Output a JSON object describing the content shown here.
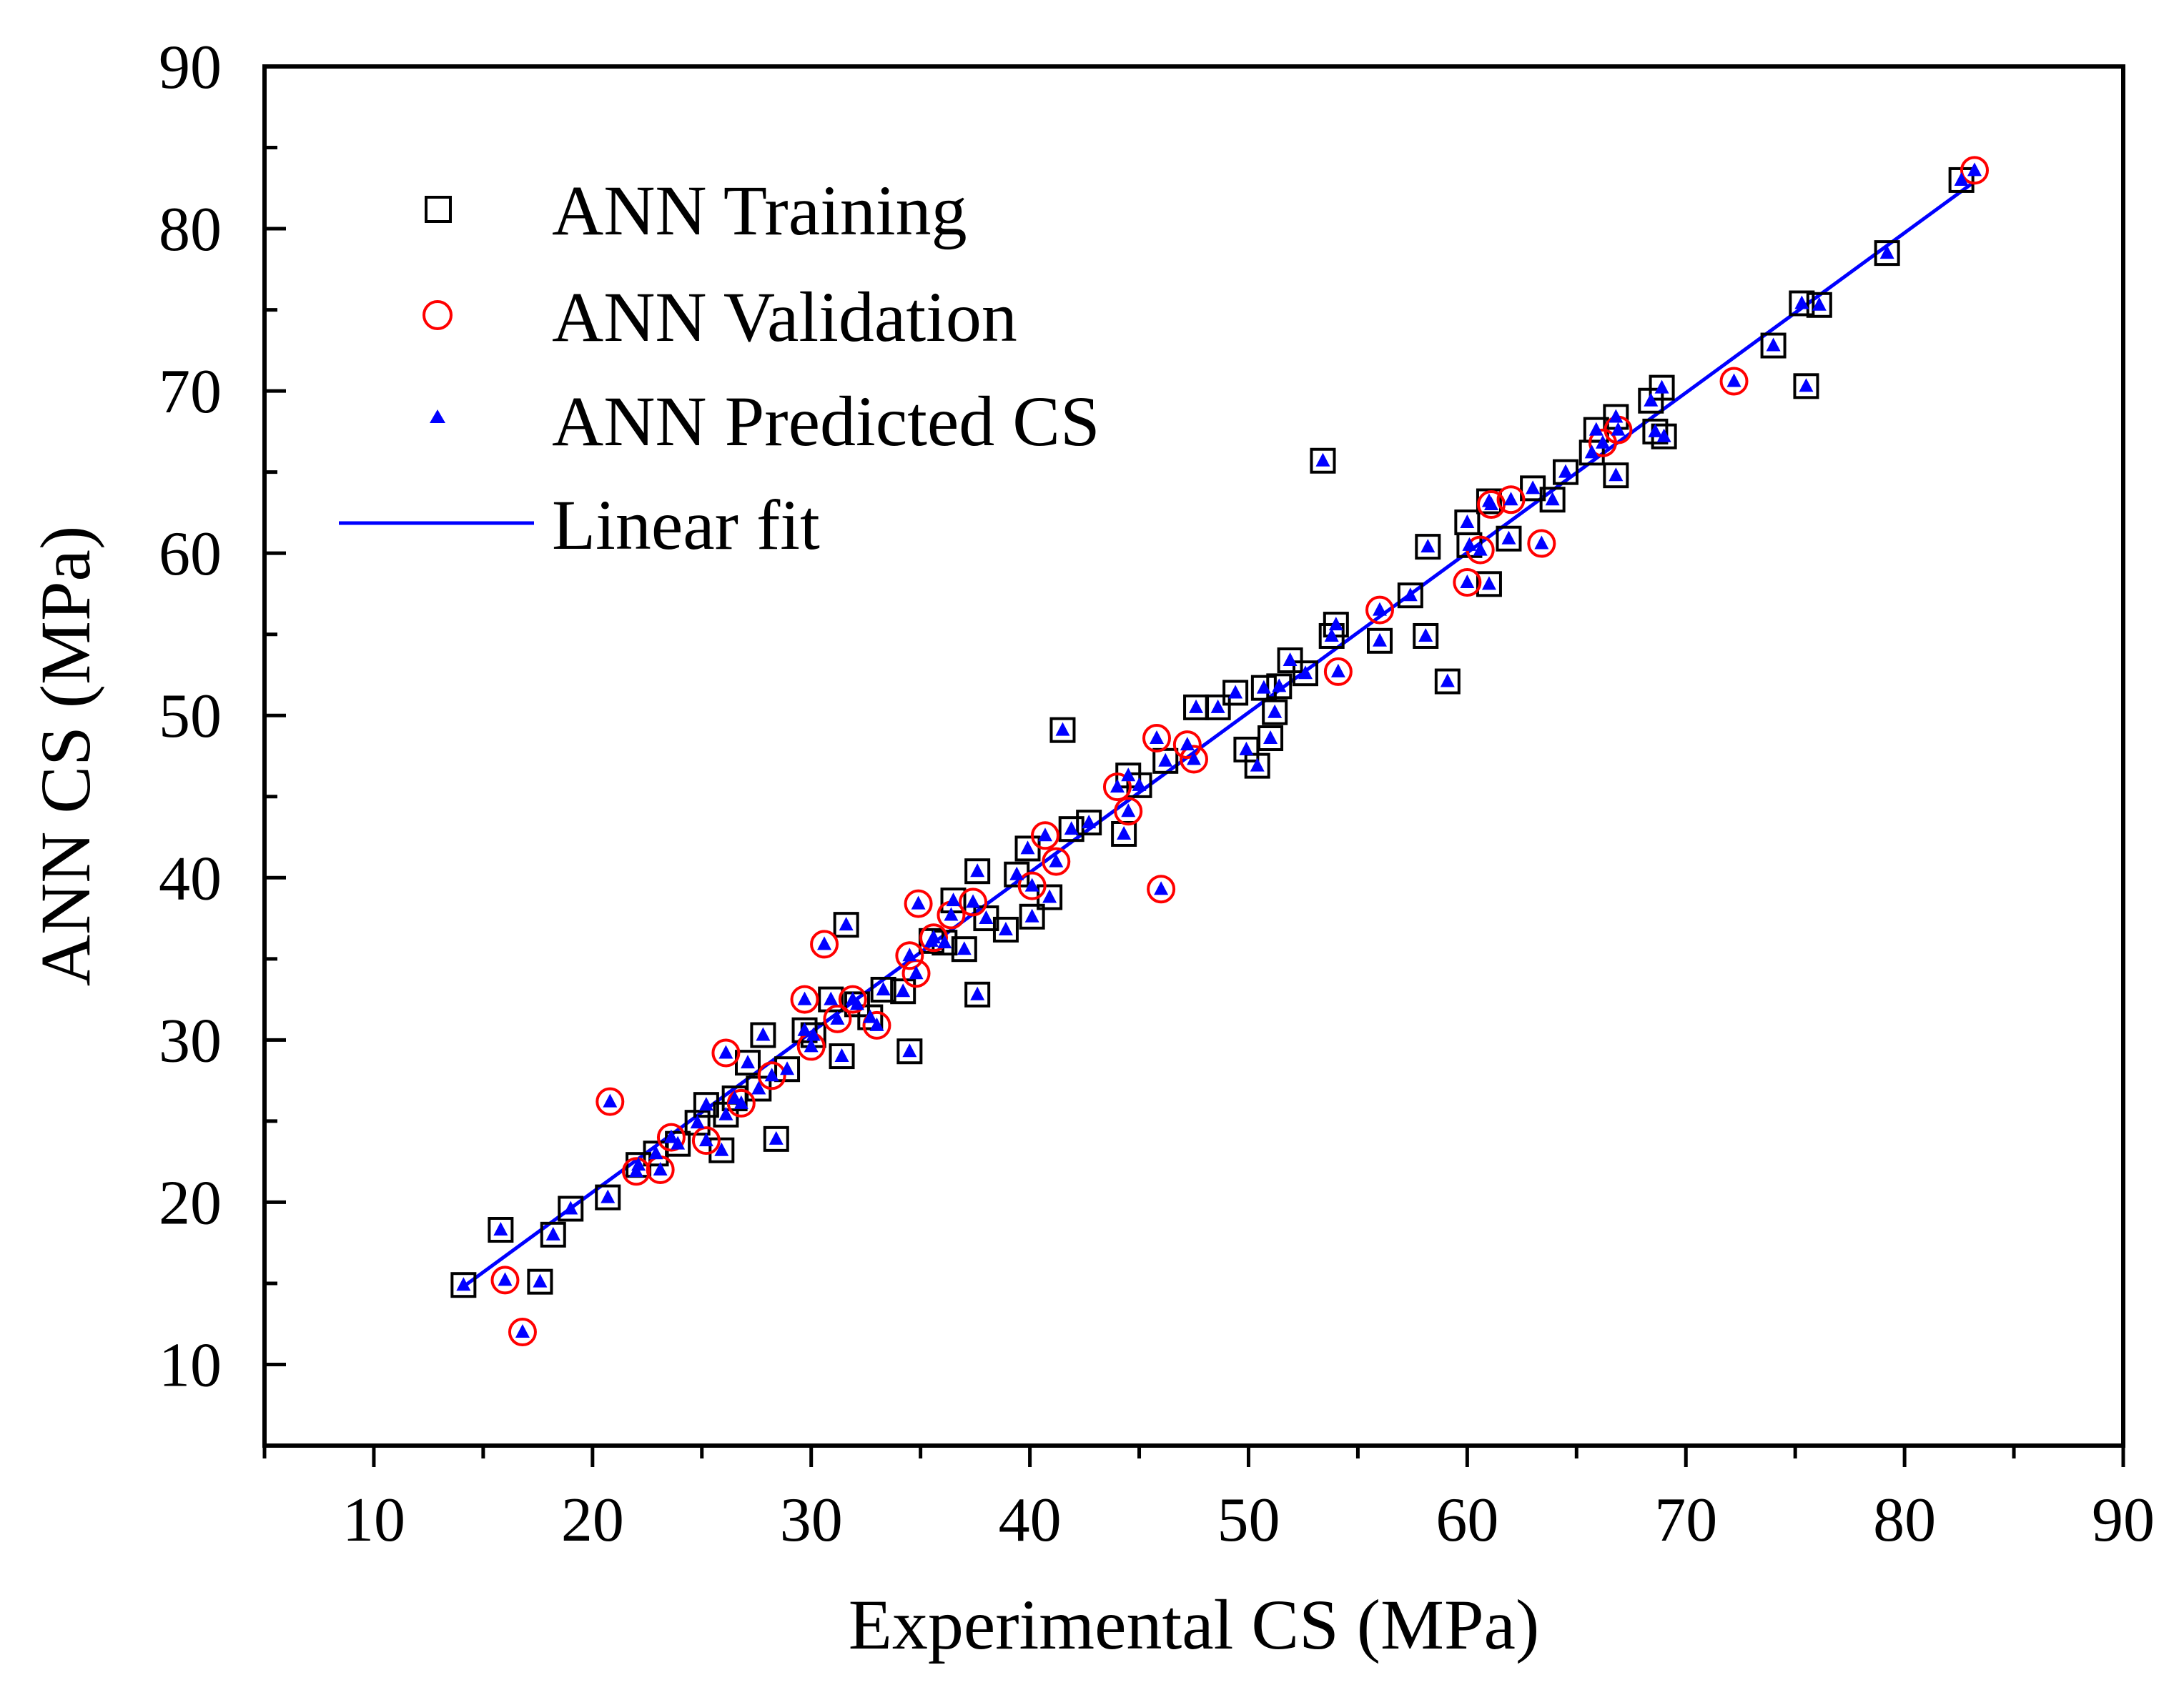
{
  "chart_data": {
    "type": "scatter",
    "xlabel": "Experimental CS (MPa)",
    "ylabel": "ANN CS (MPa)",
    "xlim": [
      5,
      90
    ],
    "ylim": [
      5,
      90
    ],
    "xticks": [
      10,
      20,
      30,
      40,
      50,
      60,
      70,
      80,
      90
    ],
    "yticks": [
      10,
      20,
      30,
      40,
      50,
      60,
      70,
      80,
      90
    ],
    "legend_position": "top-left",
    "colors": {
      "training": "#000000",
      "validation": "#ff0000",
      "predicted": "#0000ff",
      "fit": "#0000ff"
    },
    "series": [
      {
        "name": "ANN Training",
        "marker": "square-open",
        "points": [
          [
            14.1,
            14.9
          ],
          [
            15.8,
            18.3
          ],
          [
            17.6,
            15.1
          ],
          [
            18.2,
            18.0
          ],
          [
            19.0,
            19.6
          ],
          [
            20.7,
            20.3
          ],
          [
            22.1,
            22.3
          ],
          [
            22.9,
            23.0
          ],
          [
            23.9,
            23.6
          ],
          [
            24.8,
            24.9
          ],
          [
            25.2,
            26.0
          ],
          [
            25.9,
            23.2
          ],
          [
            26.1,
            25.4
          ],
          [
            26.5,
            26.4
          ],
          [
            27.1,
            28.6
          ],
          [
            27.6,
            27.0
          ],
          [
            27.8,
            30.3
          ],
          [
            28.4,
            23.9
          ],
          [
            28.9,
            28.2
          ],
          [
            29.7,
            30.6
          ],
          [
            30.1,
            30.3
          ],
          [
            30.9,
            32.5
          ],
          [
            31.4,
            29.0
          ],
          [
            31.6,
            37.1
          ],
          [
            32.1,
            32.2
          ],
          [
            32.7,
            31.4
          ],
          [
            33.3,
            33.1
          ],
          [
            34.2,
            33.0
          ],
          [
            34.5,
            29.3
          ],
          [
            35.5,
            36.1
          ],
          [
            36.1,
            36.0
          ],
          [
            36.5,
            38.6
          ],
          [
            37.0,
            35.6
          ],
          [
            37.6,
            40.4
          ],
          [
            37.6,
            32.8
          ],
          [
            38.0,
            37.5
          ],
          [
            38.9,
            36.8
          ],
          [
            39.4,
            40.2
          ],
          [
            39.9,
            41.8
          ],
          [
            40.1,
            37.6
          ],
          [
            40.9,
            38.8
          ],
          [
            41.5,
            49.1
          ],
          [
            41.9,
            43.0
          ],
          [
            42.7,
            43.4
          ],
          [
            44.3,
            42.7
          ],
          [
            44.5,
            46.3
          ],
          [
            45.0,
            45.7
          ],
          [
            46.2,
            47.2
          ],
          [
            47.6,
            50.5
          ],
          [
            48.6,
            50.5
          ],
          [
            49.4,
            51.4
          ],
          [
            49.9,
            47.9
          ],
          [
            50.4,
            46.9
          ],
          [
            50.7,
            51.7
          ],
          [
            51.0,
            48.6
          ],
          [
            51.2,
            50.2
          ],
          [
            51.4,
            51.8
          ],
          [
            51.9,
            53.4
          ],
          [
            52.6,
            52.6
          ],
          [
            53.4,
            65.7
          ],
          [
            53.8,
            54.9
          ],
          [
            54.0,
            55.6
          ],
          [
            56.0,
            54.6
          ],
          [
            57.4,
            57.4
          ],
          [
            58.1,
            54.9
          ],
          [
            58.2,
            60.4
          ],
          [
            59.1,
            52.1
          ],
          [
            60.0,
            61.9
          ],
          [
            60.1,
            60.5
          ],
          [
            61.0,
            58.1
          ],
          [
            61.0,
            63.2
          ],
          [
            61.9,
            60.9
          ],
          [
            63.0,
            64.0
          ],
          [
            63.9,
            63.3
          ],
          [
            64.5,
            65.0
          ],
          [
            65.7,
            66.2
          ],
          [
            65.9,
            67.6
          ],
          [
            66.8,
            68.4
          ],
          [
            66.8,
            64.8
          ],
          [
            68.4,
            69.4
          ],
          [
            68.6,
            67.5
          ],
          [
            68.9,
            70.2
          ],
          [
            69.0,
            67.2
          ],
          [
            74.0,
            72.8
          ],
          [
            75.3,
            75.4
          ],
          [
            75.5,
            70.3
          ],
          [
            76.1,
            75.3
          ],
          [
            79.2,
            78.5
          ],
          [
            82.6,
            83.0
          ]
        ]
      },
      {
        "name": "ANN Validation",
        "marker": "circle-open",
        "points": [
          [
            16.0,
            15.2
          ],
          [
            16.8,
            12.0
          ],
          [
            20.8,
            26.2
          ],
          [
            22.0,
            21.9
          ],
          [
            23.1,
            22.0
          ],
          [
            23.6,
            24.0
          ],
          [
            25.2,
            23.8
          ],
          [
            26.1,
            29.2
          ],
          [
            26.8,
            26.1
          ],
          [
            28.2,
            27.8
          ],
          [
            29.7,
            32.5
          ],
          [
            30.0,
            29.6
          ],
          [
            30.6,
            35.9
          ],
          [
            31.2,
            31.3
          ],
          [
            31.9,
            32.5
          ],
          [
            33.0,
            30.9
          ],
          [
            34.5,
            35.2
          ],
          [
            34.8,
            34.1
          ],
          [
            34.9,
            38.4
          ],
          [
            35.6,
            36.3
          ],
          [
            36.4,
            37.7
          ],
          [
            37.4,
            38.5
          ],
          [
            40.1,
            39.5
          ],
          [
            40.7,
            42.6
          ],
          [
            41.2,
            41.0
          ],
          [
            44.0,
            45.6
          ],
          [
            44.5,
            44.1
          ],
          [
            45.8,
            48.6
          ],
          [
            46.0,
            39.3
          ],
          [
            47.2,
            48.2
          ],
          [
            47.5,
            47.3
          ],
          [
            54.1,
            52.7
          ],
          [
            56.0,
            56.5
          ],
          [
            60.0,
            58.2
          ],
          [
            60.6,
            60.2
          ],
          [
            61.1,
            63.0
          ],
          [
            62.0,
            63.3
          ],
          [
            63.4,
            60.6
          ],
          [
            66.2,
            66.8
          ],
          [
            66.9,
            67.6
          ],
          [
            72.2,
            70.6
          ],
          [
            83.2,
            83.6
          ]
        ]
      },
      {
        "name": "ANN Predicted CS",
        "marker": "triangle-filled",
        "points": [
          [
            14.1,
            14.9
          ],
          [
            15.8,
            18.3
          ],
          [
            16.0,
            15.2
          ],
          [
            16.8,
            12.0
          ],
          [
            17.6,
            15.1
          ],
          [
            18.2,
            18.0
          ],
          [
            19.0,
            19.6
          ],
          [
            20.7,
            20.3
          ],
          [
            20.8,
            26.2
          ],
          [
            22.0,
            21.9
          ],
          [
            22.1,
            22.3
          ],
          [
            22.9,
            23.0
          ],
          [
            23.1,
            22.0
          ],
          [
            23.6,
            24.0
          ],
          [
            23.9,
            23.6
          ],
          [
            24.8,
            24.9
          ],
          [
            25.2,
            26.0
          ],
          [
            25.2,
            23.8
          ],
          [
            25.9,
            23.2
          ],
          [
            26.1,
            25.4
          ],
          [
            26.1,
            29.2
          ],
          [
            26.5,
            26.4
          ],
          [
            26.8,
            26.1
          ],
          [
            27.1,
            28.6
          ],
          [
            27.6,
            27.0
          ],
          [
            27.8,
            30.3
          ],
          [
            28.2,
            27.8
          ],
          [
            28.4,
            23.9
          ],
          [
            28.9,
            28.2
          ],
          [
            29.7,
            30.6
          ],
          [
            29.7,
            32.5
          ],
          [
            30.0,
            29.6
          ],
          [
            30.1,
            30.3
          ],
          [
            30.6,
            35.9
          ],
          [
            30.9,
            32.5
          ],
          [
            31.2,
            31.3
          ],
          [
            31.4,
            29.0
          ],
          [
            31.6,
            37.1
          ],
          [
            31.9,
            32.5
          ],
          [
            32.1,
            32.2
          ],
          [
            32.7,
            31.4
          ],
          [
            33.0,
            30.9
          ],
          [
            33.3,
            33.1
          ],
          [
            34.2,
            33.0
          ],
          [
            34.5,
            35.2
          ],
          [
            34.5,
            29.3
          ],
          [
            34.8,
            34.1
          ],
          [
            34.9,
            38.4
          ],
          [
            35.5,
            36.1
          ],
          [
            35.6,
            36.3
          ],
          [
            36.1,
            36.0
          ],
          [
            36.4,
            37.7
          ],
          [
            36.5,
            38.6
          ],
          [
            37.0,
            35.6
          ],
          [
            37.4,
            38.5
          ],
          [
            37.6,
            40.4
          ],
          [
            37.6,
            32.8
          ],
          [
            38.0,
            37.5
          ],
          [
            38.9,
            36.8
          ],
          [
            39.4,
            40.2
          ],
          [
            39.9,
            41.8
          ],
          [
            40.1,
            37.6
          ],
          [
            40.1,
            39.5
          ],
          [
            40.7,
            42.6
          ],
          [
            40.9,
            38.8
          ],
          [
            41.2,
            41.0
          ],
          [
            41.5,
            49.1
          ],
          [
            41.9,
            43.0
          ],
          [
            42.7,
            43.4
          ],
          [
            44.0,
            45.6
          ],
          [
            44.3,
            42.7
          ],
          [
            44.5,
            46.3
          ],
          [
            44.5,
            44.1
          ],
          [
            45.0,
            45.7
          ],
          [
            45.8,
            48.6
          ],
          [
            46.0,
            39.3
          ],
          [
            46.2,
            47.2
          ],
          [
            47.2,
            48.2
          ],
          [
            47.5,
            47.3
          ],
          [
            47.6,
            50.5
          ],
          [
            48.6,
            50.5
          ],
          [
            49.4,
            51.4
          ],
          [
            49.9,
            47.9
          ],
          [
            50.4,
            46.9
          ],
          [
            50.7,
            51.7
          ],
          [
            51.0,
            48.6
          ],
          [
            51.2,
            50.2
          ],
          [
            51.4,
            51.8
          ],
          [
            51.9,
            53.4
          ],
          [
            52.6,
            52.6
          ],
          [
            53.4,
            65.7
          ],
          [
            53.8,
            54.9
          ],
          [
            54.0,
            55.6
          ],
          [
            54.1,
            52.7
          ],
          [
            56.0,
            54.6
          ],
          [
            56.0,
            56.5
          ],
          [
            57.4,
            57.4
          ],
          [
            58.1,
            54.9
          ],
          [
            58.2,
            60.4
          ],
          [
            59.1,
            52.1
          ],
          [
            60.0,
            61.9
          ],
          [
            60.0,
            58.2
          ],
          [
            60.1,
            60.5
          ],
          [
            60.6,
            60.2
          ],
          [
            61.0,
            58.1
          ],
          [
            61.0,
            63.2
          ],
          [
            61.1,
            63.0
          ],
          [
            61.9,
            60.9
          ],
          [
            62.0,
            63.3
          ],
          [
            63.0,
            64.0
          ],
          [
            63.4,
            60.6
          ],
          [
            63.9,
            63.3
          ],
          [
            64.5,
            65.0
          ],
          [
            65.7,
            66.2
          ],
          [
            65.9,
            67.6
          ],
          [
            66.2,
            66.8
          ],
          [
            66.8,
            68.4
          ],
          [
            66.8,
            64.8
          ],
          [
            66.9,
            67.6
          ],
          [
            68.4,
            69.4
          ],
          [
            68.6,
            67.5
          ],
          [
            68.9,
            70.2
          ],
          [
            69.0,
            67.2
          ],
          [
            72.2,
            70.6
          ],
          [
            74.0,
            72.8
          ],
          [
            75.3,
            75.4
          ],
          [
            75.5,
            70.3
          ],
          [
            76.1,
            75.3
          ],
          [
            79.2,
            78.5
          ],
          [
            82.6,
            83.0
          ],
          [
            83.2,
            83.6
          ]
        ]
      },
      {
        "name": "Linear fit",
        "type": "line",
        "x": [
          14.1,
          83.2
        ],
        "y": [
          14.8,
          82.9
        ]
      }
    ]
  }
}
